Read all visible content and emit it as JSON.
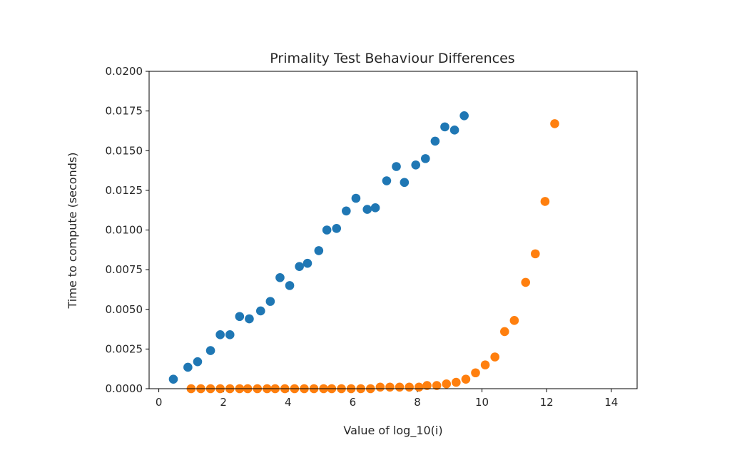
{
  "chart_data": {
    "type": "scatter",
    "title": "Primality Test Behaviour Differences",
    "xlabel": "Value of log_10(i)",
    "ylabel": "Time to compute (seconds)",
    "xlim": [
      -0.3,
      14.8
    ],
    "ylim": [
      0,
      0.02
    ],
    "xticks": [
      0,
      2,
      4,
      6,
      8,
      10,
      12,
      14
    ],
    "yticks": [
      0.0,
      0.0025,
      0.005,
      0.0075,
      0.01,
      0.0125,
      0.015,
      0.0175,
      0.02
    ],
    "xtick_labels": [
      "0",
      "2",
      "4",
      "6",
      "8",
      "10",
      "12",
      "14"
    ],
    "ytick_labels": [
      "0.0000",
      "0.0025",
      "0.0050",
      "0.0075",
      "0.0100",
      "0.0125",
      "0.0150",
      "0.0175",
      "0.0200"
    ],
    "grid": false,
    "series": [
      {
        "color": "#1f77b4",
        "points": [
          [
            0.45,
            0.0006
          ],
          [
            0.9,
            0.00135
          ],
          [
            1.2,
            0.0017
          ],
          [
            1.6,
            0.0024
          ],
          [
            1.9,
            0.0034
          ],
          [
            2.2,
            0.0034
          ],
          [
            2.5,
            0.00455
          ],
          [
            2.8,
            0.0044
          ],
          [
            3.15,
            0.0049
          ],
          [
            3.45,
            0.0055
          ],
          [
            3.75,
            0.007
          ],
          [
            4.05,
            0.0065
          ],
          [
            4.35,
            0.0077
          ],
          [
            4.6,
            0.0079
          ],
          [
            4.95,
            0.0087
          ],
          [
            5.2,
            0.01
          ],
          [
            5.5,
            0.0101
          ],
          [
            5.8,
            0.0112
          ],
          [
            6.1,
            0.012
          ],
          [
            6.45,
            0.0113
          ],
          [
            6.7,
            0.0114
          ],
          [
            7.05,
            0.0131
          ],
          [
            7.35,
            0.014
          ],
          [
            7.6,
            0.013
          ],
          [
            7.95,
            0.0141
          ],
          [
            8.25,
            0.0145
          ],
          [
            8.55,
            0.0156
          ],
          [
            8.85,
            0.0165
          ],
          [
            9.15,
            0.0163
          ],
          [
            9.45,
            0.0172
          ]
        ]
      },
      {
        "color": "#ff7f0e",
        "points": [
          [
            1.0,
            0.0
          ],
          [
            1.3,
            0.0
          ],
          [
            1.6,
            0.0
          ],
          [
            1.9,
            0.0
          ],
          [
            2.2,
            0.0
          ],
          [
            2.5,
            0.0
          ],
          [
            2.75,
            0.0
          ],
          [
            3.05,
            0.0
          ],
          [
            3.35,
            0.0
          ],
          [
            3.6,
            0.0
          ],
          [
            3.9,
            0.0
          ],
          [
            4.2,
            0.0
          ],
          [
            4.5,
            0.0
          ],
          [
            4.8,
            0.0
          ],
          [
            5.1,
            0.0
          ],
          [
            5.35,
            0.0
          ],
          [
            5.65,
            0.0
          ],
          [
            5.95,
            0.0
          ],
          [
            6.25,
            0.0
          ],
          [
            6.55,
            0.0
          ],
          [
            6.85,
            0.0001
          ],
          [
            7.15,
            0.0001
          ],
          [
            7.45,
            0.0001
          ],
          [
            7.75,
            0.0001
          ],
          [
            8.05,
            0.0001
          ],
          [
            8.3,
            0.0002
          ],
          [
            8.6,
            0.0002
          ],
          [
            8.9,
            0.0003
          ],
          [
            9.2,
            0.0004
          ],
          [
            9.5,
            0.0006
          ],
          [
            9.8,
            0.001
          ],
          [
            10.1,
            0.0015
          ],
          [
            10.4,
            0.002
          ],
          [
            10.7,
            0.0036
          ],
          [
            11.0,
            0.0043
          ],
          [
            11.35,
            0.0067
          ],
          [
            11.65,
            0.0085
          ],
          [
            11.95,
            0.0118
          ],
          [
            12.25,
            0.0167
          ]
        ]
      }
    ]
  }
}
